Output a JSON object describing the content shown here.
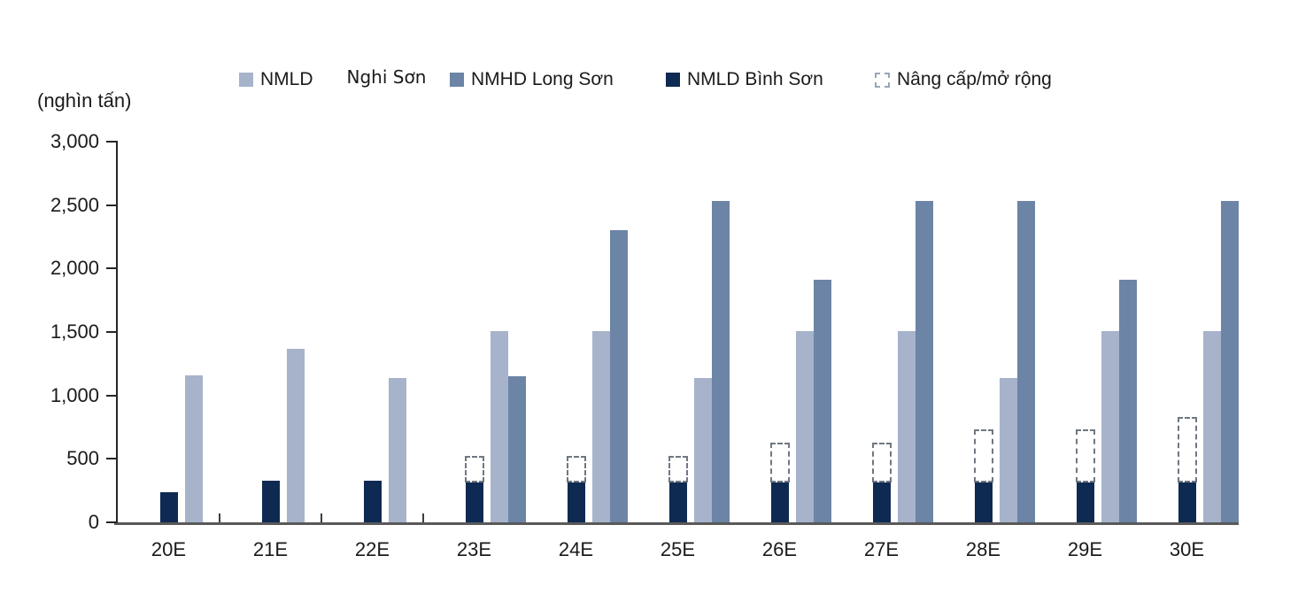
{
  "unit_label": "(nghìn tấn)",
  "colors": {
    "nghi_son": "#A6B3CB",
    "long_son": "#6C84A6",
    "binh_son": "#0F2A52",
    "upgrade_border": "#6F7782",
    "axis_line": "#595959",
    "text": "#1a1a1a"
  },
  "legend": {
    "items": [
      {
        "label": "NMLD",
        "label_fallback": "Nghi Sơn",
        "marker": "filled",
        "color": "#A6B3CB"
      },
      {
        "label": "NMHD Long Sơn",
        "marker": "filled",
        "color": "#6C84A6"
      },
      {
        "label": "NMLD Bình Sơn",
        "marker": "filled",
        "color": "#0F2A52"
      },
      {
        "label": "Nâng cấp/mở rộng",
        "marker": "dashed",
        "color": "#9AA5B8"
      }
    ]
  },
  "chart_data": {
    "type": "bar",
    "title": "",
    "ylabel": "(nghìn tấn)",
    "xlabel": "",
    "ylim": [
      0,
      3000
    ],
    "ytick_step": 500,
    "ytick_labels": [
      "0",
      "500",
      "1,000",
      "1,500",
      "2,000",
      "2,500",
      "3,000"
    ],
    "grid": false,
    "legend_position": "top",
    "categories": [
      "20E",
      "21E",
      "22E",
      "23E",
      "24E",
      "25E",
      "26E",
      "27E",
      "28E",
      "29E",
      "30E"
    ],
    "series": [
      {
        "name": "NMLD Nghi Sơn",
        "color": "#A6B3CB",
        "values": [
          1160,
          1370,
          1140,
          1510,
          1510,
          1140,
          1510,
          1510,
          1140,
          1510,
          1510
        ]
      },
      {
        "name": "NMHD Long Sơn",
        "color": "#6C84A6",
        "values": [
          null,
          null,
          null,
          1150,
          2300,
          2530,
          1910,
          2530,
          2530,
          1910,
          2530
        ]
      },
      {
        "name": "NMLD Bình Sơn",
        "color": "#0F2A52",
        "values": [
          240,
          330,
          330,
          330,
          330,
          330,
          330,
          330,
          330,
          330,
          330
        ]
      },
      {
        "name": "Nâng cấp/mở rộng",
        "style": "dashed",
        "stacked_on": "NMLD Bình Sơn",
        "values_top": [
          null,
          null,
          null,
          525,
          525,
          525,
          630,
          630,
          730,
          730,
          830
        ]
      }
    ]
  }
}
